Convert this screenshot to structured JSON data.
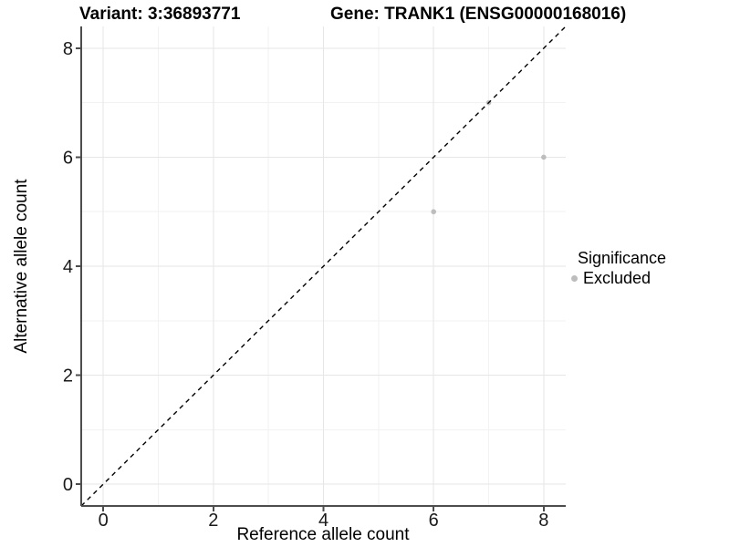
{
  "page": {
    "background": "#ffffff"
  },
  "chart_data": {
    "type": "scatter",
    "title_left": "Variant: 3:36893771",
    "title_right": "Gene: TRANK1 (ENSG00000168016)",
    "xlabel": "Reference allele count",
    "ylabel": "Alternative allele count",
    "xlim": [
      -0.4,
      8.4
    ],
    "ylim": [
      -0.4,
      8.4
    ],
    "x_ticks": [
      0,
      2,
      4,
      6,
      8
    ],
    "y_ticks": [
      0,
      2,
      4,
      6,
      8
    ],
    "x_minor_ticks": [
      1,
      3,
      5,
      7
    ],
    "y_minor_ticks": [
      1,
      3,
      5,
      7
    ],
    "grid": "major+minor",
    "reference_line": {
      "kind": "identity",
      "slope": 1,
      "intercept": 0,
      "linetype": "dashed",
      "color": "#000000"
    },
    "series": [
      {
        "name": "Excluded",
        "color": "#bdbdbd",
        "marker": "circle",
        "points": [
          [
            6,
            5
          ],
          [
            7,
            7
          ],
          [
            8,
            6
          ]
        ]
      }
    ],
    "legend": {
      "title": "Significance",
      "position": "right",
      "entries": [
        {
          "label": "Excluded",
          "color": "#bdbdbd"
        }
      ]
    }
  }
}
